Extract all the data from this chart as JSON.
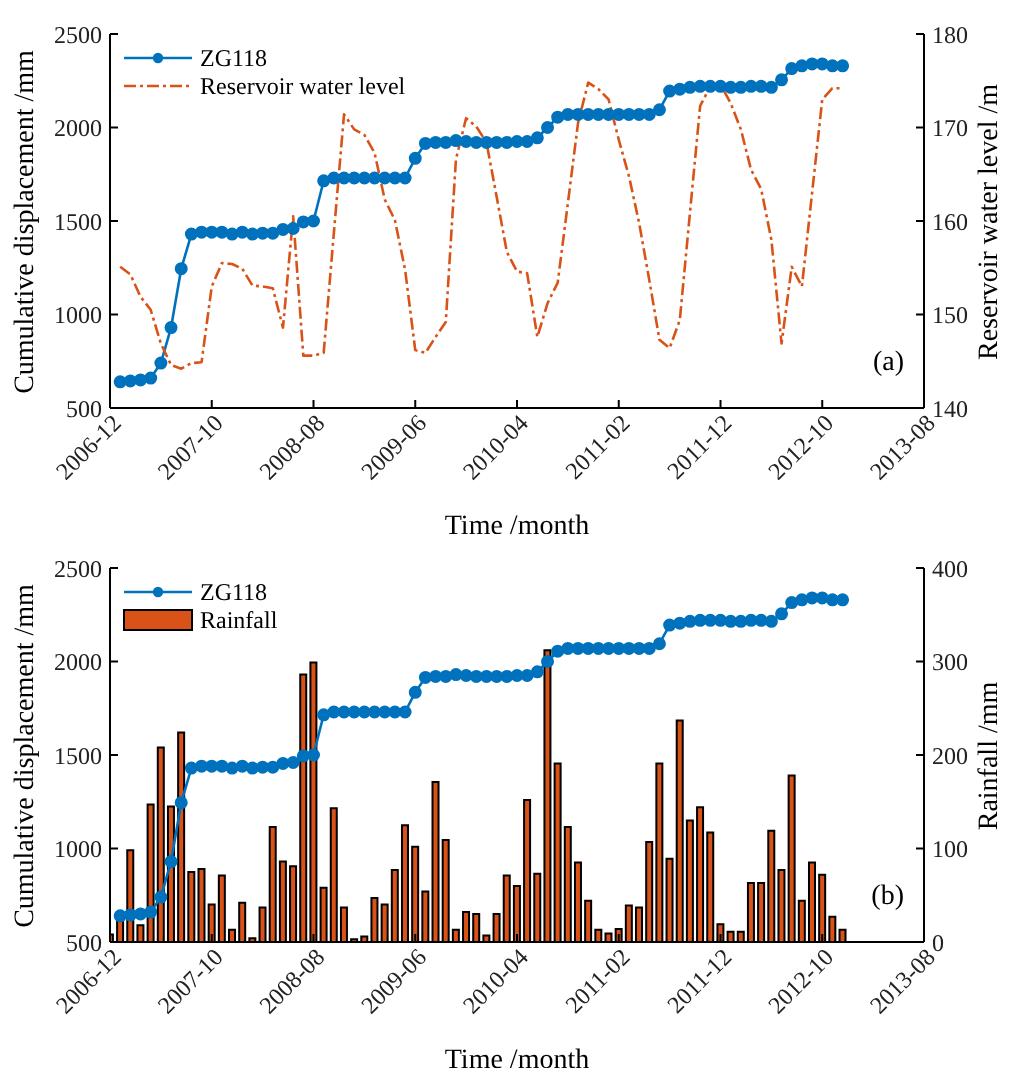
{
  "chart_data": [
    {
      "type": "line",
      "xlabel": "Time /month",
      "ylabel": "Cumulative displacement /mm",
      "y2label": "Reservoir water level /m",
      "series": [
        {
          "name": "ZG118",
          "color": "#0072bd",
          "marker": "circle",
          "line_style": "solid",
          "x": [
            "2007-01",
            "2007-02",
            "2007-03",
            "2007-04",
            "2007-05",
            "2007-06",
            "2007-07",
            "2007-08",
            "2007-09",
            "2007-10",
            "2007-11",
            "2007-12",
            "2008-01",
            "2008-02",
            "2008-03",
            "2008-04",
            "2008-05",
            "2008-06",
            "2008-07",
            "2008-08",
            "2008-09",
            "2008-10",
            "2008-11",
            "2008-12",
            "2009-01",
            "2009-02",
            "2009-03",
            "2009-04",
            "2009-05",
            "2009-06",
            "2009-07",
            "2009-08",
            "2009-09",
            "2009-10",
            "2009-11",
            "2009-12",
            "2010-01",
            "2010-02",
            "2010-03",
            "2010-04",
            "2010-05",
            "2010-06",
            "2010-07",
            "2010-08",
            "2010-09",
            "2010-10",
            "2010-11",
            "2010-12",
            "2011-01",
            "2011-02",
            "2011-03",
            "2011-04",
            "2011-05",
            "2011-06",
            "2011-07",
            "2011-08",
            "2011-09",
            "2011-10",
            "2011-11",
            "2011-12",
            "2012-01",
            "2012-02",
            "2012-03",
            "2012-04",
            "2012-05",
            "2012-06",
            "2012-07",
            "2012-08",
            "2012-09",
            "2012-10",
            "2012-11",
            "2012-12"
          ],
          "values": [
            640,
            645,
            650,
            660,
            740,
            930,
            1245,
            1430,
            1440,
            1440,
            1440,
            1430,
            1440,
            1430,
            1435,
            1435,
            1455,
            1460,
            1495,
            1500,
            1715,
            1730,
            1730,
            1730,
            1730,
            1730,
            1730,
            1730,
            1730,
            1835,
            1915,
            1920,
            1920,
            1930,
            1925,
            1920,
            1920,
            1920,
            1920,
            1925,
            1925,
            1945,
            2000,
            2055,
            2070,
            2070,
            2070,
            2070,
            2070,
            2070,
            2070,
            2070,
            2070,
            2095,
            2195,
            2205,
            2215,
            2220,
            2220,
            2220,
            2215,
            2215,
            2220,
            2220,
            2215,
            2255,
            2315,
            2330,
            2340,
            2340,
            2330,
            2330
          ]
        },
        {
          "name": "Reservoir water level",
          "axis": "y2",
          "color": "#d95319",
          "marker": "none",
          "line_style": "dashed",
          "x": [
            "2007-01",
            "2007-02",
            "2007-03",
            "2007-04",
            "2007-05",
            "2007-06",
            "2007-07",
            "2007-08",
            "2007-09",
            "2007-10",
            "2007-11",
            "2007-12",
            "2008-01",
            "2008-02",
            "2008-03",
            "2008-04",
            "2008-05",
            "2008-06",
            "2008-07",
            "2008-08",
            "2008-09",
            "2008-10",
            "2008-11",
            "2008-12",
            "2009-01",
            "2009-02",
            "2009-03",
            "2009-04",
            "2009-05",
            "2009-06",
            "2009-07",
            "2009-08",
            "2009-09",
            "2009-10",
            "2009-11",
            "2009-12",
            "2010-01",
            "2010-02",
            "2010-03",
            "2010-04",
            "2010-05",
            "2010-06",
            "2010-07",
            "2010-08",
            "2010-09",
            "2010-10",
            "2010-11",
            "2010-12",
            "2011-01",
            "2011-02",
            "2011-03",
            "2011-04",
            "2011-05",
            "2011-06",
            "2011-07",
            "2011-08",
            "2011-09",
            "2011-10",
            "2011-11",
            "2011-12",
            "2012-01",
            "2012-02",
            "2012-03",
            "2012-04",
            "2012-05",
            "2012-06",
            "2012-07",
            "2012-08",
            "2012-09",
            "2012-10",
            "2012-11",
            "2012-12"
          ],
          "values": [
            155.1,
            154.3,
            151.9,
            150.5,
            146.9,
            144.6,
            144.2,
            144.8,
            144.9,
            153.0,
            155.5,
            155.4,
            154.9,
            153.1,
            153.0,
            152.8,
            148.6,
            160.5,
            145.6,
            145.6,
            145.9,
            158.7,
            171.4,
            169.8,
            169.2,
            167.3,
            162.3,
            160.1,
            154.8,
            146.2,
            145.9,
            147.6,
            149.2,
            166.6,
            171.0,
            170.1,
            168.4,
            162.6,
            156.7,
            154.6,
            154.4,
            147.6,
            151.2,
            153.4,
            161.9,
            170.5,
            174.8,
            174.1,
            173.0,
            168.7,
            164.8,
            159.8,
            153.7,
            147.3,
            146.4,
            149.4,
            160.9,
            172.3,
            174.4,
            174.6,
            172.6,
            169.8,
            165.5,
            163.4,
            158.0,
            146.9,
            155.1,
            153.0,
            163.0,
            173.0,
            174.2,
            174.2
          ]
        }
      ],
      "xlim": [
        "2006-12",
        "2013-08"
      ],
      "xticks": [
        "2006-12",
        "2007-10",
        "2008-08",
        "2009-06",
        "2010-04",
        "2011-02",
        "2011-12",
        "2012-10",
        "2013-08"
      ],
      "ylim": [
        500,
        2500
      ],
      "yticks": [
        500,
        1000,
        1500,
        2000,
        2500
      ],
      "y2lim": [
        140,
        180
      ],
      "y2ticks": [
        140,
        150,
        160,
        170,
        180
      ],
      "legend": "top left",
      "grid": false,
      "annotations": [
        "(a)"
      ]
    },
    {
      "type": "line",
      "xlabel": "Time /month",
      "ylabel": "Cumulative displacement /mm",
      "y2label": "Rainfall /mm",
      "series": [
        {
          "name": "ZG118",
          "color": "#0072bd",
          "marker": "circle",
          "line_style": "solid",
          "x": [
            "2007-01",
            "2007-02",
            "2007-03",
            "2007-04",
            "2007-05",
            "2007-06",
            "2007-07",
            "2007-08",
            "2007-09",
            "2007-10",
            "2007-11",
            "2007-12",
            "2008-01",
            "2008-02",
            "2008-03",
            "2008-04",
            "2008-05",
            "2008-06",
            "2008-07",
            "2008-08",
            "2008-09",
            "2008-10",
            "2008-11",
            "2008-12",
            "2009-01",
            "2009-02",
            "2009-03",
            "2009-04",
            "2009-05",
            "2009-06",
            "2009-07",
            "2009-08",
            "2009-09",
            "2009-10",
            "2009-11",
            "2009-12",
            "2010-01",
            "2010-02",
            "2010-03",
            "2010-04",
            "2010-05",
            "2010-06",
            "2010-07",
            "2010-08",
            "2010-09",
            "2010-10",
            "2010-11",
            "2010-12",
            "2011-01",
            "2011-02",
            "2011-03",
            "2011-04",
            "2011-05",
            "2011-06",
            "2011-07",
            "2011-08",
            "2011-09",
            "2011-10",
            "2011-11",
            "2011-12",
            "2012-01",
            "2012-02",
            "2012-03",
            "2012-04",
            "2012-05",
            "2012-06",
            "2012-07",
            "2012-08",
            "2012-09",
            "2012-10",
            "2012-11",
            "2012-12"
          ],
          "values": [
            640,
            645,
            650,
            660,
            740,
            930,
            1245,
            1430,
            1440,
            1440,
            1440,
            1430,
            1440,
            1430,
            1435,
            1435,
            1455,
            1460,
            1495,
            1500,
            1715,
            1730,
            1730,
            1730,
            1730,
            1730,
            1730,
            1730,
            1730,
            1835,
            1915,
            1920,
            1920,
            1930,
            1925,
            1920,
            1920,
            1920,
            1920,
            1925,
            1925,
            1945,
            2000,
            2055,
            2070,
            2070,
            2070,
            2070,
            2070,
            2070,
            2070,
            2070,
            2070,
            2095,
            2195,
            2205,
            2215,
            2220,
            2220,
            2220,
            2215,
            2215,
            2220,
            2220,
            2215,
            2255,
            2315,
            2330,
            2340,
            2340,
            2330,
            2330
          ]
        },
        {
          "name": "Rainfall",
          "type": "bar",
          "axis": "y2",
          "color": "#d95319",
          "x": [
            "2006-12",
            "2007-01",
            "2007-02",
            "2007-03",
            "2007-04",
            "2007-05",
            "2007-06",
            "2007-07",
            "2007-08",
            "2007-09",
            "2007-10",
            "2007-11",
            "2007-12",
            "2008-01",
            "2008-02",
            "2008-03",
            "2008-04",
            "2008-05",
            "2008-06",
            "2008-07",
            "2008-08",
            "2008-09",
            "2008-10",
            "2008-11",
            "2008-12",
            "2009-01",
            "2009-02",
            "2009-03",
            "2009-04",
            "2009-05",
            "2009-06",
            "2009-07",
            "2009-08",
            "2009-09",
            "2009-10",
            "2009-11",
            "2009-12",
            "2010-01",
            "2010-02",
            "2010-03",
            "2010-04",
            "2010-05",
            "2010-06",
            "2010-07",
            "2010-08",
            "2010-09",
            "2010-10",
            "2010-11",
            "2010-12",
            "2011-01",
            "2011-02",
            "2011-03",
            "2011-04",
            "2011-05",
            "2011-06",
            "2011-07",
            "2011-08",
            "2011-09",
            "2011-10",
            "2011-11",
            "2011-12",
            "2012-01",
            "2012-02",
            "2012-03",
            "2012-04",
            "2012-05",
            "2012-06",
            "2012-07",
            "2012-08",
            "2012-09",
            "2012-10",
            "2012-11",
            "2012-12"
          ],
          "values": [
            8,
            23,
            98,
            18,
            147,
            208,
            145,
            224,
            75,
            78,
            40,
            71,
            13,
            42,
            4,
            37,
            123,
            86,
            81,
            286,
            299,
            58,
            143,
            37,
            3,
            6,
            47,
            40,
            77,
            125,
            102,
            54,
            171,
            109,
            13,
            32,
            30,
            7,
            30,
            71,
            60,
            152,
            73,
            312,
            191,
            123,
            85,
            44,
            13,
            9,
            14,
            39,
            37,
            107,
            191,
            89,
            237,
            130,
            144,
            117,
            19,
            11,
            11,
            63,
            63,
            119,
            77,
            178,
            44,
            85,
            72,
            27,
            13
          ]
        }
      ],
      "xlim": [
        "2006-12",
        "2013-08"
      ],
      "xticks": [
        "2006-12",
        "2007-10",
        "2008-08",
        "2009-06",
        "2010-04",
        "2011-02",
        "2011-12",
        "2012-10",
        "2013-08"
      ],
      "ylim": [
        500,
        2500
      ],
      "yticks": [
        500,
        1000,
        1500,
        2000,
        2500
      ],
      "y2lim": [
        0,
        400
      ],
      "y2ticks": [
        0,
        100,
        200,
        300,
        400
      ],
      "legend": "top left",
      "grid": false,
      "annotations": [
        "(b)"
      ]
    }
  ]
}
